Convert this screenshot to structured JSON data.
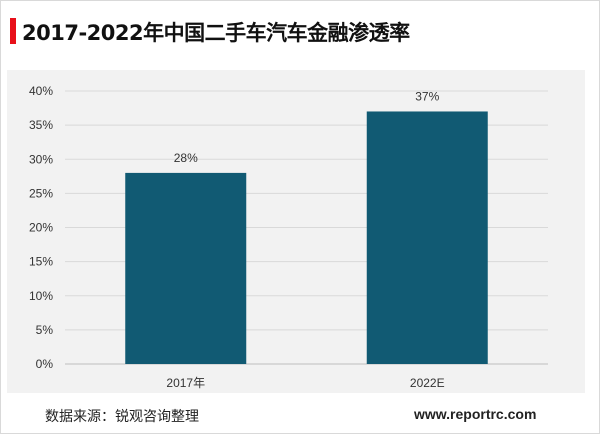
{
  "title": "2017-2022年中国二手车汽车金融渗透率",
  "source": "数据来源：锐观咨询整理",
  "website": "www.reportrc.com",
  "colors": {
    "title_accent": "#e8101a",
    "bar": "#115a73",
    "panel_background": "#f2f2f2",
    "gridline": "#d9d9d9"
  },
  "chart_data": {
    "type": "bar",
    "categories": [
      "2017年",
      "2022E"
    ],
    "values": [
      28,
      37
    ],
    "value_labels": [
      "28%",
      "37%"
    ],
    "ylim": [
      0,
      40
    ],
    "yticks": [
      0,
      5,
      10,
      15,
      20,
      25,
      30,
      35,
      40
    ],
    "ytick_labels": [
      "0%",
      "5%",
      "10%",
      "15%",
      "20%",
      "25%",
      "30%",
      "35%",
      "40%"
    ],
    "xlabel": "",
    "ylabel": "",
    "grid": true,
    "legend": "none"
  }
}
